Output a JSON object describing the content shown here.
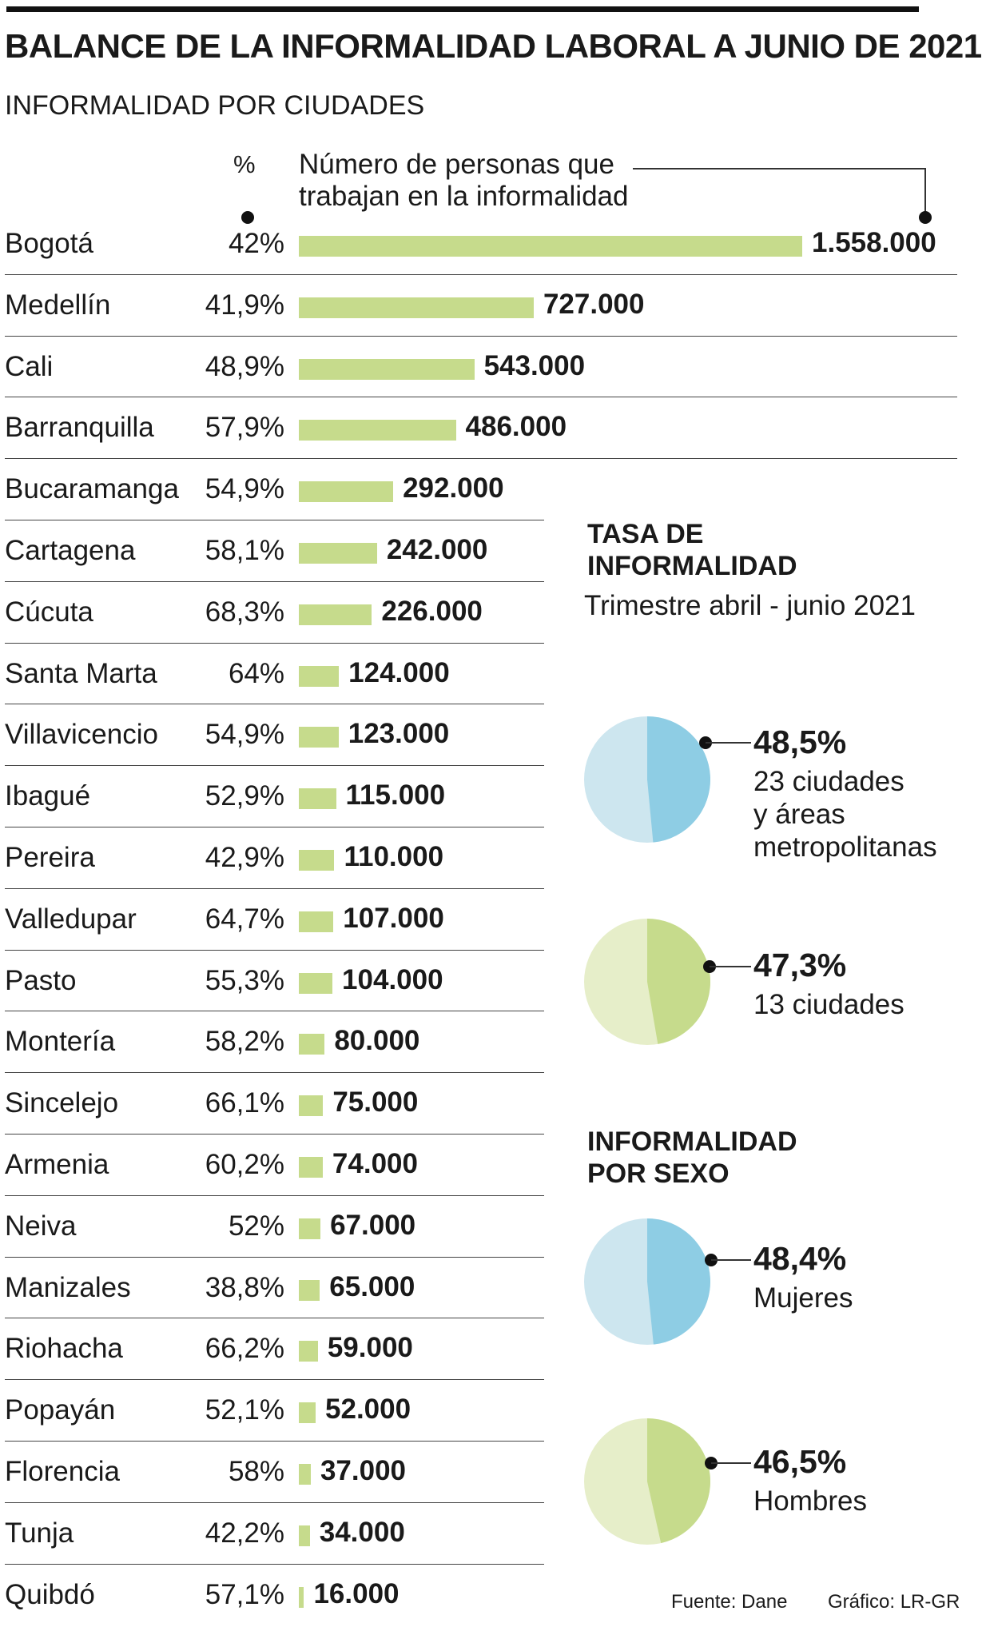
{
  "title": "BALANCE DE LA INFORMALIDAD LABORAL A JUNIO DE 2021",
  "subtitle": "INFORMALIDAD POR CIUDADES",
  "pct_header": "%",
  "value_header": [
    "Número de personas que",
    "trabajan en la informalidad"
  ],
  "colors": {
    "bar": "#c6db8c",
    "pie_blue": "#8ecde4",
    "pie_blue_light": "#cde6ef",
    "pie_green": "#c6db8c",
    "pie_green_light": "#e6eec9"
  },
  "chart_data": [
    {
      "type": "bar",
      "orientation": "horizontal",
      "categories": [
        "Bogotá",
        "Medellín",
        "Cali",
        "Barranquilla",
        "Bucaramanga",
        "Cartagena",
        "Cúcuta",
        "Santa Marta",
        "Villavicencio",
        "Ibagué",
        "Pereira",
        "Valledupar",
        "Pasto",
        "Montería",
        "Sincelejo",
        "Armenia",
        "Neiva",
        "Manizales",
        "Riohacha",
        "Popayán",
        "Florencia",
        "Tunja",
        "Quibdó"
      ],
      "percentages": [
        "42%",
        "41,9%",
        "48,9%",
        "57,9%",
        "54,9%",
        "58,1%",
        "68,3%",
        "64%",
        "54,9%",
        "52,9%",
        "42,9%",
        "64,7%",
        "55,3%",
        "58,2%",
        "66,1%",
        "60,2%",
        "52%",
        "38,8%",
        "66,2%",
        "52,1%",
        "58%",
        "42,2%",
        "57,1%"
      ],
      "values": [
        1558000,
        727000,
        543000,
        486000,
        292000,
        242000,
        226000,
        124000,
        123000,
        115000,
        110000,
        107000,
        104000,
        80000,
        75000,
        74000,
        67000,
        65000,
        59000,
        52000,
        37000,
        34000,
        16000
      ],
      "value_labels": [
        "1.558.000",
        "727.000",
        "543.000",
        "486.000",
        "292.000",
        "242.000",
        "226.000",
        "124.000",
        "123.000",
        "115.000",
        "110.000",
        "107.000",
        "104.000",
        "80.000",
        "75.000",
        "74.000",
        "67.000",
        "65.000",
        "59.000",
        "52.000",
        "37.000",
        "34.000",
        "16.000"
      ]
    },
    {
      "type": "pie",
      "title": "TASA DE INFORMALIDAD",
      "subtitle": "Trimestre abril - junio 2021",
      "slices": [
        {
          "value": 48.5,
          "label": "48,5%",
          "description": "23 ciudades y áreas metropolitanas",
          "lines": [
            "23 ciudades",
            "y áreas",
            "metropolitanas"
          ],
          "color": "blue"
        },
        {
          "value": 47.3,
          "label": "47,3%",
          "description": "13 ciudades",
          "lines": [
            "13 ciudades"
          ],
          "color": "green"
        }
      ]
    },
    {
      "type": "pie",
      "title": "INFORMALIDAD POR SEXO",
      "slices": [
        {
          "value": 48.4,
          "label": "48,4%",
          "description": "Mujeres",
          "lines": [
            "Mujeres"
          ],
          "color": "blue"
        },
        {
          "value": 46.5,
          "label": "46,5%",
          "description": "Hombres",
          "lines": [
            "Hombres"
          ],
          "color": "green"
        }
      ]
    }
  ],
  "tasa_title": [
    "TASA DE",
    "INFORMALIDAD"
  ],
  "sexo_title": [
    "INFORMALIDAD",
    "POR SEXO"
  ],
  "footer": {
    "source": "Fuente: Dane",
    "credit": "Gráfico: LR-GR"
  }
}
